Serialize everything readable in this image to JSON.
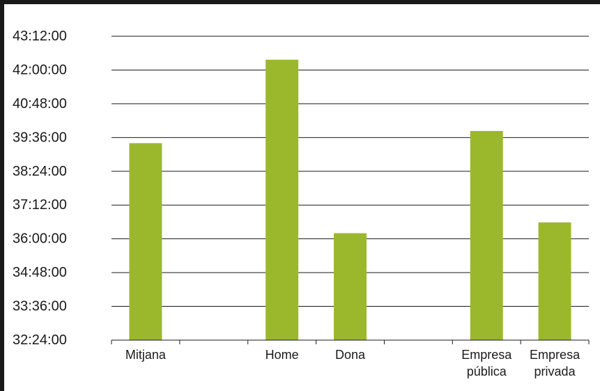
{
  "chart_data": {
    "type": "bar",
    "title": "",
    "xlabel": "",
    "ylabel": "",
    "categories": [
      [
        "Mitjana"
      ],
      [
        ""
      ],
      [
        "Home"
      ],
      [
        "Dona"
      ],
      [
        ""
      ],
      [
        "Empresa",
        "pública"
      ],
      [
        "Empresa",
        "privada"
      ]
    ],
    "values_seconds": [
      141840,
      null,
      152520,
      130320,
      null,
      143400,
      131700
    ],
    "values": [
      "39:24:00",
      null,
      "42:22:00",
      "36:12:00",
      null,
      "39:50:00",
      "36:35:00"
    ],
    "ylim_seconds": [
      116640,
      155520
    ],
    "yticks": [
      "32:24:00",
      "33:36:00",
      "34:48:00",
      "36:00:00",
      "37:12:00",
      "38:24:00",
      "39:36:00",
      "40:48:00",
      "42:00:00",
      "43:12:00"
    ],
    "grid": true,
    "legend": "none",
    "bar_color": "#9bb82c"
  }
}
